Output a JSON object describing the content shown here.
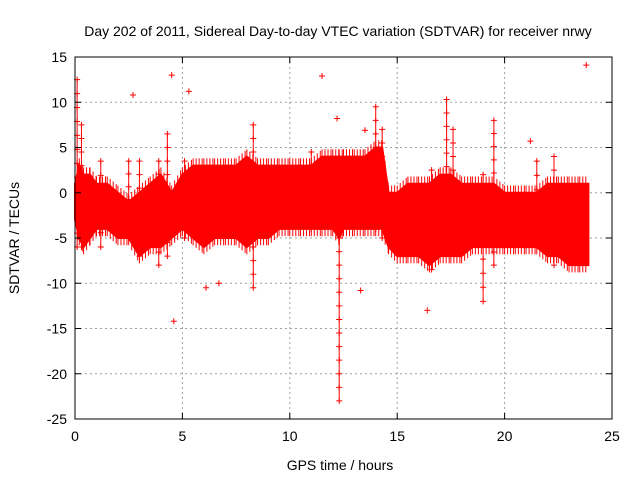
{
  "chart_data": {
    "type": "scatter",
    "title": "Day 202 of 2011, Sidereal Day-to-day VTEC variation (SDTVAR) for receiver nrwy",
    "xlabel": "GPS time / hours",
    "ylabel": "SDTVAR / TECUs",
    "xlim": [
      0,
      25
    ],
    "ylim": [
      -25,
      15
    ],
    "xticks": [
      0,
      5,
      10,
      15,
      20,
      25
    ],
    "yticks": [
      -25,
      -20,
      -15,
      -10,
      -5,
      0,
      5,
      10,
      15
    ],
    "grid": true,
    "legend": "none",
    "series": [
      {
        "name": "nrwy",
        "color": "#ff0000",
        "marker": "+",
        "band": {
          "x": [
            0,
            0.2,
            0.4,
            0.7,
            1.0,
            1.5,
            2.0,
            2.5,
            3.0,
            3.5,
            4.0,
            4.5,
            5.0,
            5.5,
            6.0,
            6.5,
            7.0,
            7.5,
            8.0,
            8.5,
            9.0,
            9.5,
            10.0,
            10.5,
            11.0,
            11.5,
            12.0,
            12.3,
            12.5,
            13.0,
            13.5,
            14.0,
            14.3,
            14.6,
            15.0,
            15.5,
            16.0,
            16.5,
            17.0,
            17.5,
            18.0,
            18.5,
            19.0,
            19.5,
            20.0,
            20.5,
            21.0,
            21.5,
            22.0,
            22.5,
            23.0,
            23.5,
            23.9
          ],
          "low": [
            -3,
            -5,
            -6,
            -5,
            -4,
            -4,
            -5,
            -5,
            -7,
            -6,
            -6,
            -5,
            -4,
            -5,
            -6,
            -5,
            -5,
            -5,
            -6,
            -5,
            -5,
            -4,
            -4,
            -4,
            -4,
            -4,
            -4,
            -5,
            -4,
            -4,
            -4,
            -4,
            -4,
            -6,
            -7,
            -7,
            -7,
            -8,
            -7,
            -7,
            -7,
            -6,
            -6,
            -6,
            -6,
            -6,
            -6,
            -6,
            -7,
            -7,
            -8,
            -8,
            -8
          ],
          "high": [
            1,
            3,
            2,
            2,
            1,
            1,
            0,
            -1,
            0,
            1,
            2,
            0,
            2,
            3,
            3,
            3,
            3,
            3,
            4,
            3,
            3,
            3,
            3,
            3,
            3,
            4,
            4,
            4,
            4,
            4,
            4,
            5,
            5,
            0,
            0,
            1,
            1,
            1,
            2,
            2,
            1,
            1,
            1,
            1,
            0,
            0,
            0,
            0,
            1,
            1,
            1,
            1,
            1
          ]
        },
        "spikes": [
          {
            "x": 0.1,
            "low": -6,
            "high": 12.5
          },
          {
            "x": 0.3,
            "low": -6,
            "high": 7.5
          },
          {
            "x": 1.2,
            "low": -6,
            "high": 3.5
          },
          {
            "x": 2.5,
            "low": -5,
            "high": 3.5
          },
          {
            "x": 3.0,
            "low": -7,
            "high": 3.5
          },
          {
            "x": 3.9,
            "low": -8,
            "high": 3.5
          },
          {
            "x": 4.3,
            "low": -7,
            "high": 6.5
          },
          {
            "x": 5.1,
            "low": -5,
            "high": 3.5
          },
          {
            "x": 8.3,
            "low": -10.5,
            "high": 7.5
          },
          {
            "x": 11.0,
            "low": -4,
            "high": 4.5
          },
          {
            "x": 12.3,
            "low": -23,
            "high": 4.0
          },
          {
            "x": 14.0,
            "low": -4,
            "high": 9.5
          },
          {
            "x": 14.3,
            "low": -5,
            "high": 7.0
          },
          {
            "x": 16.6,
            "low": -8.5,
            "high": 2.5
          },
          {
            "x": 17.3,
            "low": -6,
            "high": 10.3
          },
          {
            "x": 17.6,
            "low": -5,
            "high": 7.0
          },
          {
            "x": 19.0,
            "low": -12,
            "high": 2.0
          },
          {
            "x": 19.5,
            "low": -8,
            "high": 8.0
          },
          {
            "x": 21.5,
            "low": -6,
            "high": 3.5
          },
          {
            "x": 22.3,
            "low": -8,
            "high": 4.0
          }
        ],
        "outliers": [
          {
            "x": 2.7,
            "y": 10.8
          },
          {
            "x": 4.5,
            "y": 13.0
          },
          {
            "x": 5.3,
            "y": 11.2
          },
          {
            "x": 11.5,
            "y": 12.9
          },
          {
            "x": 12.2,
            "y": 8.2
          },
          {
            "x": 13.5,
            "y": 6.9
          },
          {
            "x": 21.2,
            "y": 5.7
          },
          {
            "x": 23.8,
            "y": 14.1
          },
          {
            "x": 4.6,
            "y": -14.2
          },
          {
            "x": 6.1,
            "y": -10.5
          },
          {
            "x": 6.7,
            "y": -10.0
          },
          {
            "x": 13.3,
            "y": -10.8
          },
          {
            "x": 16.4,
            "y": -13.0
          }
        ]
      }
    ]
  }
}
